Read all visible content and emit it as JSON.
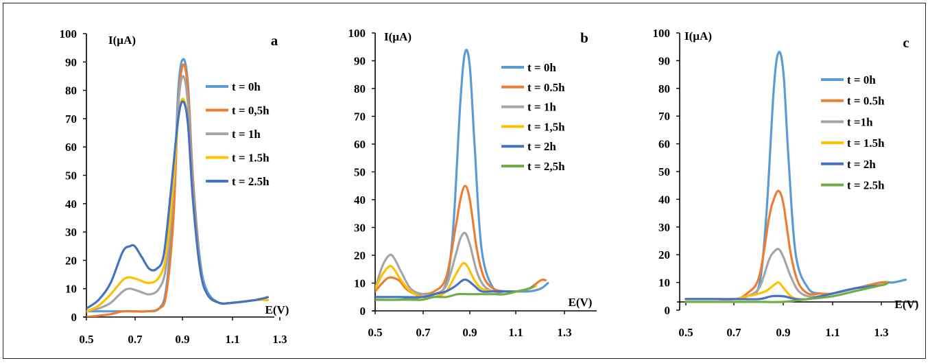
{
  "chart_data": [
    {
      "type": "line",
      "panel_label": "a",
      "ylabel": "I(µA)",
      "xlabel": "E(V)",
      "xlim": [
        0.5,
        1.3
      ],
      "ylim": [
        0,
        100
      ],
      "xticks": [
        "0.5",
        "0.7",
        "0.9",
        "1.1",
        "1.3"
      ],
      "yticks": [
        "0",
        "10",
        "20",
        "30",
        "40",
        "50",
        "60",
        "70",
        "80",
        "90",
        "100"
      ],
      "legend_position": "right",
      "series": [
        {
          "name": "t = 0h",
          "color": "#5b9bd5",
          "x": [
            0.5,
            0.6,
            0.65,
            0.7,
            0.75,
            0.8,
            0.83,
            0.86,
            0.88,
            0.9,
            0.92,
            0.94,
            0.97,
            1.0,
            1.05,
            1.1,
            1.2,
            1.25
          ],
          "y": [
            2,
            2,
            2,
            2,
            2,
            3,
            10,
            40,
            80,
            91,
            82,
            50,
            20,
            9,
            5,
            5,
            6,
            7
          ]
        },
        {
          "name": "t = 0,5h",
          "color": "#ed7d31",
          "x": [
            0.5,
            0.6,
            0.65,
            0.7,
            0.75,
            0.8,
            0.83,
            0.86,
            0.88,
            0.9,
            0.92,
            0.94,
            0.97,
            1.0,
            1.05,
            1.1,
            1.2,
            1.25
          ],
          "y": [
            0,
            1,
            2,
            2,
            2,
            3,
            8,
            35,
            75,
            89,
            80,
            48,
            18,
            8,
            5,
            5,
            6,
            7
          ]
        },
        {
          "name": "t = 1h",
          "color": "#a5a5a5",
          "x": [
            0.5,
            0.55,
            0.6,
            0.65,
            0.68,
            0.72,
            0.76,
            0.8,
            0.83,
            0.86,
            0.88,
            0.9,
            0.92,
            0.94,
            0.97,
            1.0,
            1.05,
            1.1,
            1.2,
            1.25
          ],
          "y": [
            2,
            3,
            5,
            9,
            10,
            9,
            8,
            10,
            18,
            45,
            75,
            85,
            75,
            45,
            18,
            8,
            5,
            5,
            6,
            6
          ]
        },
        {
          "name": "t = 1.5h",
          "color": "#ffc000",
          "x": [
            0.5,
            0.55,
            0.6,
            0.65,
            0.68,
            0.72,
            0.76,
            0.8,
            0.83,
            0.86,
            0.88,
            0.9,
            0.92,
            0.94,
            0.97,
            1.0,
            1.05,
            1.1,
            1.2,
            1.25
          ],
          "y": [
            2,
            4,
            8,
            13,
            14,
            13,
            12,
            14,
            22,
            48,
            70,
            77,
            68,
            42,
            17,
            8,
            5,
            5,
            6,
            6
          ]
        },
        {
          "name": "t = 2.5h",
          "color": "#4472c4",
          "x": [
            0.5,
            0.55,
            0.6,
            0.65,
            0.68,
            0.7,
            0.73,
            0.76,
            0.79,
            0.82,
            0.85,
            0.88,
            0.9,
            0.92,
            0.94,
            0.97,
            1.0,
            1.05,
            1.1,
            1.2,
            1.25
          ],
          "y": [
            3,
            6,
            12,
            23,
            25,
            25,
            21,
            17,
            17,
            22,
            45,
            70,
            76,
            68,
            42,
            17,
            8,
            5,
            5,
            6,
            7
          ]
        }
      ]
    },
    {
      "type": "line",
      "panel_label": "b",
      "ylabel": "I(µA)",
      "xlabel": "E(V)",
      "xlim": [
        0.5,
        1.3
      ],
      "ylim": [
        0,
        100
      ],
      "xticks": [
        "0.5",
        "0.7",
        "0.9",
        "1.1",
        "1.3"
      ],
      "yticks": [
        "0",
        "10",
        "20",
        "30",
        "40",
        "50",
        "60",
        "70",
        "80",
        "90",
        "100"
      ],
      "legend_position": "top-right",
      "series": [
        {
          "name": "t = 0h",
          "color": "#5b9bd5",
          "x": [
            0.5,
            0.6,
            0.7,
            0.75,
            0.8,
            0.83,
            0.86,
            0.88,
            0.9,
            0.92,
            0.95,
            1.0,
            1.05,
            1.1,
            1.15,
            1.2,
            1.23
          ],
          "y": [
            4,
            4,
            5,
            6,
            10,
            30,
            75,
            93,
            88,
            60,
            22,
            8,
            7,
            7,
            7,
            8,
            10
          ]
        },
        {
          "name": "t = 0.5h",
          "color": "#ed7d31",
          "x": [
            0.5,
            0.53,
            0.56,
            0.6,
            0.63,
            0.67,
            0.7,
            0.75,
            0.8,
            0.84,
            0.86,
            0.88,
            0.9,
            0.93,
            0.96,
            1.0,
            1.05,
            1.1,
            1.15,
            1.2,
            1.22
          ],
          "y": [
            7,
            10,
            12,
            11,
            8,
            6,
            6,
            7,
            12,
            30,
            40,
            45,
            40,
            22,
            12,
            8,
            7,
            7,
            8,
            11,
            11
          ]
        },
        {
          "name": "t = 1h",
          "color": "#a5a5a5",
          "x": [
            0.5,
            0.53,
            0.56,
            0.58,
            0.61,
            0.65,
            0.7,
            0.75,
            0.8,
            0.84,
            0.86,
            0.88,
            0.9,
            0.93,
            0.96,
            1.0,
            1.05,
            1.1,
            1.15,
            1.18
          ],
          "y": [
            8,
            16,
            20,
            19,
            14,
            8,
            6,
            6,
            9,
            20,
            26,
            28,
            24,
            14,
            9,
            7,
            7,
            7,
            8,
            9
          ]
        },
        {
          "name": "t = 1,5h",
          "color": "#ffc000",
          "x": [
            0.5,
            0.53,
            0.56,
            0.58,
            0.61,
            0.65,
            0.7,
            0.75,
            0.8,
            0.84,
            0.87,
            0.89,
            0.92,
            0.95,
            1.0,
            1.05,
            1.1,
            1.15,
            1.18
          ],
          "y": [
            8,
            13,
            16,
            15,
            11,
            7,
            5,
            5,
            7,
            13,
            17,
            16,
            11,
            8,
            7,
            7,
            7,
            8,
            9
          ]
        },
        {
          "name": "t = 2h",
          "color": "#4472c4",
          "x": [
            0.5,
            0.6,
            0.7,
            0.75,
            0.8,
            0.84,
            0.87,
            0.89,
            0.92,
            0.95,
            1.0,
            1.05,
            1.1,
            1.15,
            1.17
          ],
          "y": [
            5,
            5,
            5,
            6,
            7,
            9,
            11,
            11,
            9,
            7,
            7,
            7,
            7,
            8,
            9
          ]
        },
        {
          "name": "t = 2,5h",
          "color": "#70ad47",
          "x": [
            0.5,
            0.55,
            0.6,
            0.65,
            0.7,
            0.75,
            0.8,
            0.85,
            0.9,
            0.95,
            1.0,
            1.05,
            1.1,
            1.15,
            1.17
          ],
          "y": [
            4,
            4,
            4,
            4,
            4,
            5,
            5,
            6,
            6,
            6,
            6,
            6,
            7,
            8,
            9
          ]
        }
      ]
    },
    {
      "type": "line",
      "panel_label": "c",
      "ylabel": "I(µA)",
      "xlabel": "E(V)",
      "xlim": [
        0.5,
        1.4
      ],
      "ylim": [
        0,
        100
      ],
      "xticks": [
        "0.5",
        "0.7",
        "0.9",
        "1.1",
        "1.3"
      ],
      "yticks": [
        "0",
        "10",
        "20",
        "30",
        "40",
        "50",
        "60",
        "70",
        "80",
        "90",
        "100"
      ],
      "legend_position": "top-right",
      "series": [
        {
          "name": "t = 0h",
          "color": "#5b9bd5",
          "x": [
            0.5,
            0.6,
            0.7,
            0.75,
            0.8,
            0.83,
            0.86,
            0.88,
            0.9,
            0.92,
            0.95,
            1.0,
            1.05,
            1.1,
            1.2,
            1.3,
            1.35,
            1.4
          ],
          "y": [
            4,
            4,
            4,
            5,
            9,
            35,
            80,
            93,
            85,
            55,
            20,
            8,
            6,
            6,
            8,
            10,
            10,
            11
          ]
        },
        {
          "name": "t = 0.5h",
          "color": "#ed7d31",
          "x": [
            0.5,
            0.55,
            0.6,
            0.7,
            0.75,
            0.8,
            0.84,
            0.86,
            0.88,
            0.9,
            0.93,
            0.96,
            1.0,
            1.05,
            1.1,
            1.2,
            1.3,
            1.33
          ],
          "y": [
            4,
            4,
            4,
            4,
            6,
            12,
            33,
            40,
            43,
            38,
            20,
            10,
            6,
            6,
            6,
            8,
            10,
            10
          ]
        },
        {
          "name": "t =1h",
          "color": "#a5a5a5",
          "x": [
            0.5,
            0.6,
            0.7,
            0.75,
            0.8,
            0.84,
            0.86,
            0.88,
            0.9,
            0.93,
            0.96,
            1.0,
            1.05,
            1.1,
            1.2,
            1.3,
            1.33
          ],
          "y": [
            4,
            4,
            4,
            5,
            8,
            18,
            21,
            22,
            19,
            12,
            7,
            5,
            5,
            6,
            8,
            9,
            10
          ]
        },
        {
          "name": "t = 1.5h",
          "color": "#ffc000",
          "x": [
            0.5,
            0.6,
            0.7,
            0.75,
            0.8,
            0.83,
            0.86,
            0.88,
            0.9,
            0.93,
            0.96,
            1.0,
            1.05,
            1.1,
            1.2,
            1.3,
            1.33
          ],
          "y": [
            4,
            4,
            4,
            5,
            6,
            7,
            9,
            10,
            8,
            5,
            4,
            4,
            5,
            6,
            8,
            9,
            10
          ]
        },
        {
          "name": "t = 2h",
          "color": "#4472c4",
          "x": [
            0.5,
            0.6,
            0.7,
            0.8,
            0.85,
            0.9,
            0.95,
            1.0,
            1.05,
            1.1,
            1.2,
            1.3,
            1.33
          ],
          "y": [
            4,
            4,
            4,
            4,
            5,
            5,
            4,
            4,
            5,
            6,
            8,
            9,
            10
          ]
        },
        {
          "name": "t = 2.5h",
          "color": "#70ad47",
          "x": [
            0.5,
            0.6,
            0.7,
            0.8,
            0.9,
            1.0,
            1.1,
            1.2,
            1.3,
            1.33
          ],
          "y": [
            3,
            3,
            3,
            3,
            3,
            4,
            5,
            7,
            9,
            10
          ]
        }
      ]
    }
  ]
}
